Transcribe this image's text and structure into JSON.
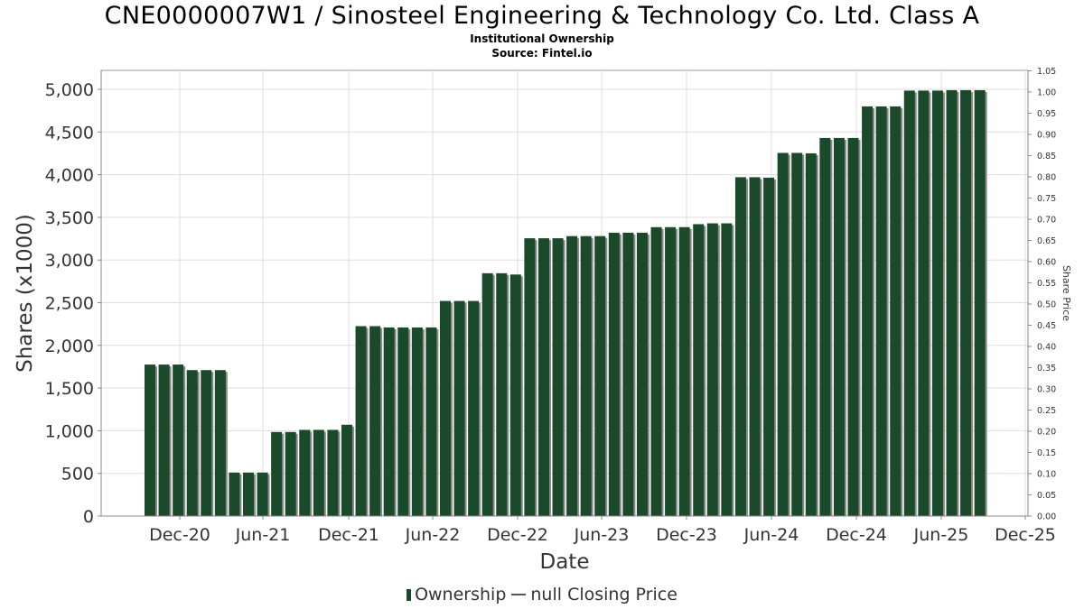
{
  "title": "CNE0000007W1 / Sinosteel Engineering & Technology Co. Ltd. Class A",
  "subtitle_1": "Institutional Ownership",
  "subtitle_2": "Source: Fintel.io",
  "colors": {
    "bar": "#1a4a2a",
    "bar_shadow": "#8a8a8a",
    "grid": "#dddddd",
    "axis": "#888888"
  },
  "legend": {
    "ownership": "Ownership",
    "price": "null Closing Price"
  },
  "chart_data": {
    "type": "bar",
    "xlabel": "Date",
    "ylabel": "Shares (x1000)",
    "y2label": "Share Price",
    "ylim": [
      0,
      5200
    ],
    "y2lim": [
      0,
      1.05
    ],
    "grid": true,
    "legend_position": "bottom",
    "x_ticks": [
      "Dec-20",
      "Jun-21",
      "Dec-21",
      "Jun-22",
      "Dec-22",
      "Jun-23",
      "Dec-23",
      "Jun-24",
      "Dec-24",
      "Jun-25",
      "Dec-25"
    ],
    "y_ticks": [
      "0",
      "500",
      "1,000",
      "1,500",
      "2,000",
      "2,500",
      "3,000",
      "3,500",
      "4,000",
      "4,500",
      "5,000"
    ],
    "y2_ticks": [
      "0.00",
      "0.05",
      "0.10",
      "0.15",
      "0.20",
      "0.25",
      "0.30",
      "0.35",
      "0.40",
      "0.45",
      "0.50",
      "0.55",
      "0.60",
      "0.65",
      "0.70",
      "0.75",
      "0.80",
      "0.85",
      "0.90",
      "0.95",
      "1.00",
      "1.05"
    ],
    "series": [
      {
        "name": "Ownership",
        "values": [
          1775,
          1775,
          1775,
          1710,
          1710,
          1710,
          510,
          510,
          510,
          985,
          985,
          1010,
          1010,
          1010,
          1070,
          2225,
          2225,
          2210,
          2210,
          2210,
          2210,
          2520,
          2520,
          2520,
          2845,
          2845,
          2830,
          3255,
          3255,
          3255,
          3280,
          3280,
          3280,
          3320,
          3320,
          3320,
          3385,
          3385,
          3385,
          3420,
          3430,
          3430,
          3970,
          3970,
          3965,
          4255,
          4255,
          4250,
          4430,
          4430,
          4430,
          4800,
          4800,
          4800,
          4985,
          4985,
          4985,
          4990,
          4990,
          4990
        ]
      }
    ]
  }
}
